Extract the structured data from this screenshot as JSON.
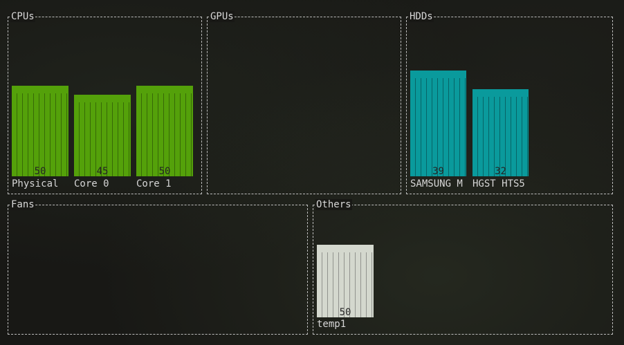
{
  "colors": {
    "cpu": "#54a10a",
    "hdd": "#0a9a9c",
    "other": "#d4d8ce"
  },
  "panels": {
    "cpus": {
      "title": "CPUs",
      "bars": [
        {
          "label": "Physical",
          "value": "50"
        },
        {
          "label": "Core 0",
          "value": "45"
        },
        {
          "label": "Core 1",
          "value": "50"
        }
      ]
    },
    "gpus": {
      "title": "GPUs",
      "bars": []
    },
    "hdds": {
      "title": "HDDs",
      "bars": [
        {
          "label": "SAMSUNG M",
          "value": "39"
        },
        {
          "label": "HGST HTS5",
          "value": "32"
        }
      ]
    },
    "fans": {
      "title": "Fans",
      "bars": []
    },
    "others": {
      "title": "Others",
      "bars": [
        {
          "label": "temp1",
          "value": "50"
        }
      ]
    }
  }
}
